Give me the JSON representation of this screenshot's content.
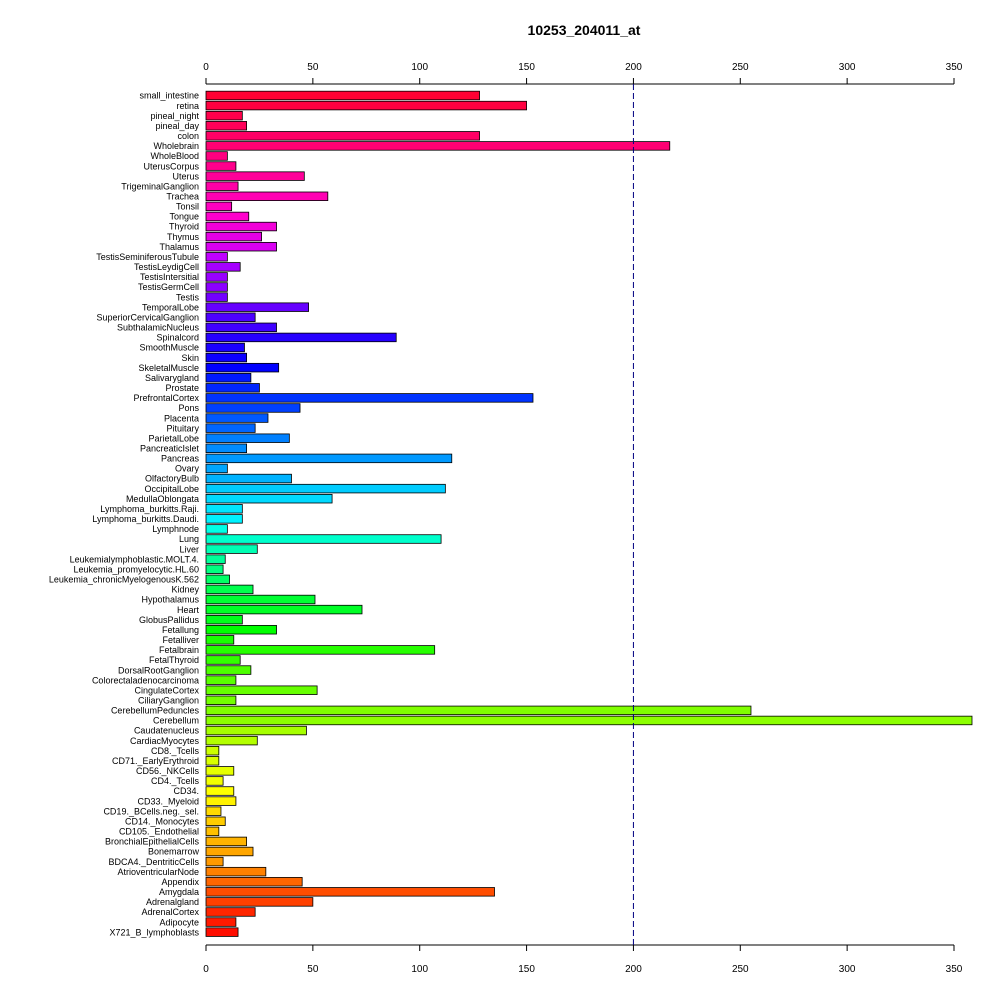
{
  "chart_data": {
    "type": "bar",
    "orientation": "horizontal",
    "title": "10253_204011_at",
    "xlim": [
      0,
      350
    ],
    "xticks": [
      0,
      50,
      100,
      150,
      200,
      250,
      300,
      350
    ],
    "reference_line": 200,
    "grid": false,
    "categories": [
      "small_intestine",
      "retina",
      "pineal_night",
      "pineal_day",
      "colon",
      "Wholebrain",
      "WholeBlood",
      "UterusCorpus",
      "Uterus",
      "TrigeminalGanglion",
      "Trachea",
      "Tonsil",
      "Tongue",
      "Thyroid",
      "Thymus",
      "Thalamus",
      "TestisSeminiferousTubule",
      "TestisLeydigCell",
      "TestisIntersitial",
      "TestisGermCell",
      "Testis",
      "TemporalLobe",
      "SuperiorCervicalGanglion",
      "SubthalamicNucleus",
      "Spinalcord",
      "SmoothMuscle",
      "Skin",
      "SkeletalMuscle",
      "Salivarygland",
      "Prostate",
      "PrefrontalCortex",
      "Pons",
      "Placenta",
      "Pituitary",
      "ParietalLobe",
      "PancreaticIslet",
      "Pancreas",
      "Ovary",
      "OlfactoryBulb",
      "OccipitalLobe",
      "MedullaOblongata",
      "Lymphoma_burkitts.Raji.",
      "Lymphoma_burkitts.Daudi.",
      "Lymphnode",
      "Lung",
      "Liver",
      "Leukemialymphoblastic.MOLT.4.",
      "Leukemia_promyelocytic.HL.60",
      "Leukemia_chronicMyelogenousK.562",
      "Kidney",
      "Hypothalamus",
      "Heart",
      "GlobusPallidus",
      "Fetallung",
      "Fetalliver",
      "Fetalbrain",
      "FetalThyroid",
      "DorsalRootGanglion",
      "Colorectaladenocarcinoma",
      "CingulateCortex",
      "CiliaryGanglion",
      "CerebellumPeduncles",
      "Cerebellum",
      "Caudatenucleus",
      "CardiacMyocytes",
      "CD8._Tcells",
      "CD71._EarlyErythroid",
      "CD56._NKCells",
      "CD4._Tcells",
      "CD34.",
      "CD33._Myeloid",
      "CD19._BCells.neg._sel.",
      "CD14._Monocytes",
      "CD105._Endothelial",
      "BronchialEpithelialCells",
      "Bonemarrow",
      "BDCA4._DentriticCells",
      "AtrioventricularNode",
      "Appendix",
      "Amygdala",
      "Adrenalgland",
      "AdrenalCortex",
      "Adipocyte",
      "X721_B_lymphoblasts"
    ],
    "values": [
      128,
      150,
      17,
      19,
      128,
      217,
      10,
      14,
      46,
      15,
      57,
      12,
      20,
      33,
      26,
      33,
      10,
      16,
      10,
      10,
      10,
      48,
      23,
      33,
      89,
      18,
      19,
      34,
      21,
      25,
      153,
      44,
      29,
      23,
      39,
      19,
      115,
      10,
      40,
      112,
      59,
      17,
      17,
      10,
      110,
      24,
      9,
      8,
      11,
      22,
      51,
      73,
      17,
      33,
      13,
      107,
      16,
      21,
      14,
      52,
      14,
      255,
      359,
      47,
      24,
      6,
      6,
      13,
      8,
      13,
      14,
      7,
      9,
      6,
      19,
      22,
      8,
      28,
      45,
      135,
      50,
      23,
      14,
      15
    ],
    "colors": [
      "#ff0033",
      "#ff0040",
      "#ff004c",
      "#ff0059",
      "#ff0066",
      "#ff0073",
      "#ff0080",
      "#ff008c",
      "#ff0099",
      "#ff00a6",
      "#ff00b3",
      "#ff00c0",
      "#ff00cc",
      "#f200d9",
      "#e600e6",
      "#d900f2",
      "#c000ff",
      "#a600ff",
      "#9900ff",
      "#8c00ff",
      "#7300ff",
      "#6600ff",
      "#4d00ff",
      "#4000ff",
      "#2600ff",
      "#1a00ff",
      "#0d00ff",
      "#0000ff",
      "#0019ff",
      "#0026ff",
      "#0033ff",
      "#0040ff",
      "#0059ff",
      "#0066ff",
      "#0080ff",
      "#008cff",
      "#0099ff",
      "#00a6ff",
      "#00b3ff",
      "#00ccff",
      "#00d9ff",
      "#00e6ff",
      "#00f2ff",
      "#00ffe6",
      "#00ffcc",
      "#00ffb3",
      "#00ff99",
      "#00ff80",
      "#00ff66",
      "#00ff4d",
      "#00ff33",
      "#00ff26",
      "#00ff1a",
      "#00ff00",
      "#19ff00",
      "#26ff00",
      "#33ff00",
      "#4dff00",
      "#59ff00",
      "#66ff00",
      "#73ff00",
      "#80ff00",
      "#8cff00",
      "#a6ff00",
      "#b3ff00",
      "#ccff00",
      "#d9ff00",
      "#e6ff00",
      "#f2ff00",
      "#ffff00",
      "#fff200",
      "#ffd900",
      "#ffcc00",
      "#ffbf00",
      "#ffb300",
      "#ffa600",
      "#ff9900",
      "#ff8000",
      "#ff6600",
      "#ff4d00",
      "#ff4000",
      "#ff2600",
      "#ff1a00",
      "#ff0d00"
    ]
  }
}
